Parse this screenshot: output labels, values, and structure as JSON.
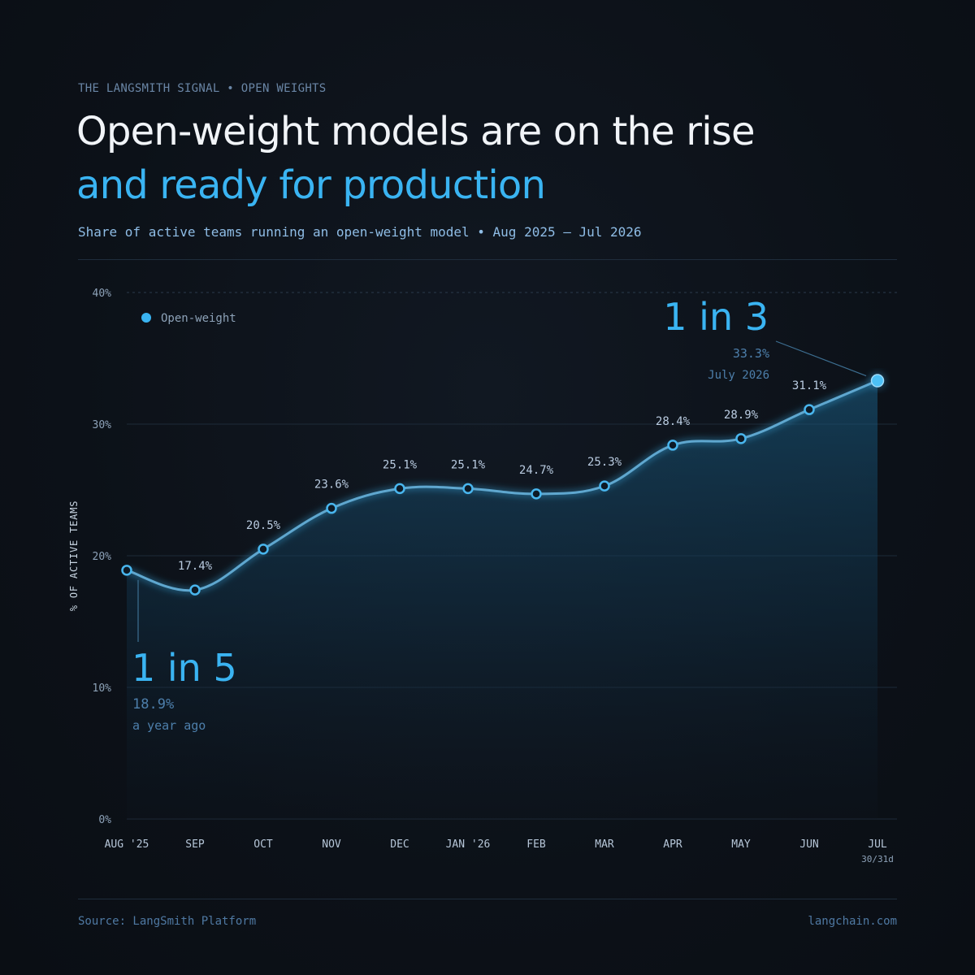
{
  "header": {
    "kicker": "THE LANGSMITH SIGNAL • OPEN WEIGHTS",
    "title_line1": "Open-weight models are on the rise",
    "title_line2": "and ready for production",
    "subtitle": "Share of active teams running an open-weight model • Aug 2025 – Jul 2026"
  },
  "footer": {
    "source": "Source: LangSmith Platform",
    "site": "langchain.com"
  },
  "colors": {
    "accent": "#3ab4f2",
    "background": "#0c1118",
    "title": "#f1f4f8"
  },
  "chart_data": {
    "type": "area",
    "ylabel": "% OF ACTIVE TEAMS",
    "ylim": [
      0,
      40
    ],
    "yticks": [
      0,
      10,
      20,
      30,
      40
    ],
    "ytick_labels": [
      "0%",
      "10%",
      "20%",
      "30%",
      "40%"
    ],
    "grid": true,
    "legend": "top-left",
    "categories": [
      "AUG '25",
      "SEP",
      "OCT",
      "NOV",
      "DEC",
      "JAN '26",
      "FEB",
      "MAR",
      "APR",
      "MAY",
      "JUN",
      "JUL"
    ],
    "last_category_note": "30/31d",
    "series": [
      {
        "name": "Open-weight",
        "values": [
          18.9,
          17.4,
          20.5,
          23.6,
          25.1,
          25.1,
          24.7,
          25.3,
          28.4,
          28.9,
          31.1,
          33.3
        ],
        "point_labels": [
          "",
          "17.4%",
          "20.5%",
          "23.6%",
          "25.1%",
          "25.1%",
          "24.7%",
          "25.3%",
          "28.4%",
          "28.9%",
          "31.1%",
          ""
        ]
      }
    ],
    "annotations": [
      {
        "index": 0,
        "headline": "1 in 5",
        "value_label": "18.9%",
        "note": "a year ago"
      },
      {
        "index": 11,
        "headline": "1 in 3",
        "value_label": "33.3%",
        "note": "July 2026"
      }
    ]
  }
}
